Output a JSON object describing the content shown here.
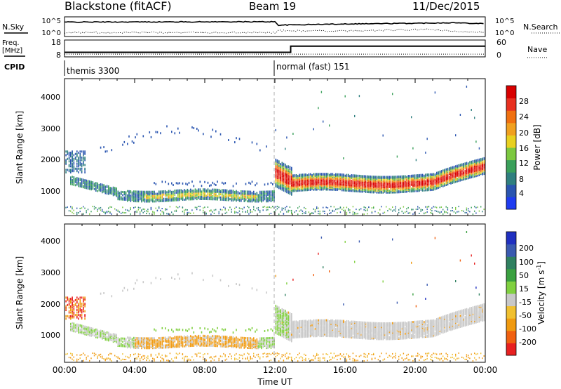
{
  "header": {
    "radar": "Blackstone (fitACF)",
    "beam": "Beam 19",
    "date": "11/Dec/2015"
  },
  "noise_panel": {
    "left_label": "N.Sky",
    "right_label": "N.Search",
    "left_ticks": [
      "10^5",
      "10^0"
    ],
    "right_ticks": [
      "10^5",
      "10^0"
    ]
  },
  "freq_panel": {
    "left_label_1": "Freq.",
    "left_label_2": "[MHz]",
    "left_ticks": [
      "18",
      "8"
    ],
    "right_label": "Nave",
    "right_ticks": [
      "60",
      "0"
    ]
  },
  "cpid": {
    "label": "CPID",
    "segments": [
      {
        "name": "themis 3300",
        "start_hour": 0.0
      },
      {
        "name": "normal (fast) 151",
        "start_hour": 12.05
      }
    ]
  },
  "axes": {
    "x_ticks": [
      "00:00",
      "04:00",
      "08:00",
      "12:00",
      "16:00",
      "20:00",
      "00:00"
    ],
    "x_label": "Time UT",
    "y_ticks": [
      "1000",
      "2000",
      "3000",
      "4000"
    ],
    "y_label": "Slant Range [km]"
  },
  "colorbars": {
    "power": {
      "label": "Power [dB]",
      "ticks": [
        "4",
        "8",
        "12",
        "16",
        "20",
        "24",
        "28"
      ],
      "colors": [
        "#1f3cf0",
        "#2a55b0",
        "#2f7f7f",
        "#3aa05a",
        "#7cc840",
        "#e8d020",
        "#f0a020",
        "#f07010",
        "#e83020",
        "#d80000"
      ]
    },
    "velocity": {
      "label": "Velocity [m s",
      "label_sup": "-1",
      "label_end": "]",
      "ticks": [
        "200",
        "100",
        "50",
        "15",
        "-15",
        "-50",
        "-100",
        "-200"
      ],
      "colors": [
        "#2030c0",
        "#3a5ab0",
        "#2f8060",
        "#3aa040",
        "#80d040",
        "#c8c8c8",
        "#f0c030",
        "#f09a10",
        "#f06010",
        "#e82020"
      ]
    }
  },
  "chart_data": {
    "type": "heatmap",
    "x_range_hours": [
      0,
      24
    ],
    "y_range_km": [
      180,
      4600
    ],
    "noise_sky_log": [
      [
        0,
        4.0
      ],
      [
        12.0,
        4.1
      ],
      [
        12.2,
        3.0
      ],
      [
        16,
        3.4
      ],
      [
        20,
        3.6
      ],
      [
        22,
        3.8
      ],
      [
        24,
        3.5
      ]
    ],
    "noise_search_log": [
      [
        0,
        0.6
      ],
      [
        12,
        0.6
      ],
      [
        12.2,
        1.2
      ],
      [
        16,
        1.1
      ],
      [
        21,
        1.6
      ],
      [
        22,
        1.0
      ],
      [
        24,
        0.8
      ]
    ],
    "frequency_mhz": [
      [
        0,
        10.5
      ],
      [
        12.9,
        10.5
      ],
      [
        12.9,
        14.5
      ],
      [
        24,
        14.5
      ]
    ],
    "nave": [
      [
        0,
        8
      ],
      [
        24,
        8
      ]
    ],
    "power_echo_bands": [
      {
        "name": "early pre-midnight band",
        "t_start": 0.3,
        "t_end": 12.0,
        "range_km_center": 850,
        "power_db": 14
      },
      {
        "name": "strong post-midnight band",
        "t_start": 12.1,
        "t_end": 23.5,
        "range_km_center": 1300,
        "power_db": 28
      },
      {
        "name": "near-range clutter",
        "t_start": 0.0,
        "t_end": 24.0,
        "range_km_center": 300,
        "power_db": 8
      },
      {
        "name": "far patchy echoes",
        "t_start": 2.0,
        "t_end": 12.0,
        "range_km_center": 2400,
        "power_db": 6
      }
    ],
    "velocity_echo_bands": [
      {
        "name": "early band",
        "t_start": 0.3,
        "t_end": 12.0,
        "range_km_center": 850,
        "velocity_ms": -30
      },
      {
        "name": "post-midnight band",
        "t_start": 12.1,
        "t_end": 23.5,
        "range_km_center": 1300,
        "velocity_ms": 0
      },
      {
        "name": "near-range",
        "t_start": 0.0,
        "t_end": 24.0,
        "range_km_center": 300,
        "velocity_ms": -40
      }
    ]
  }
}
